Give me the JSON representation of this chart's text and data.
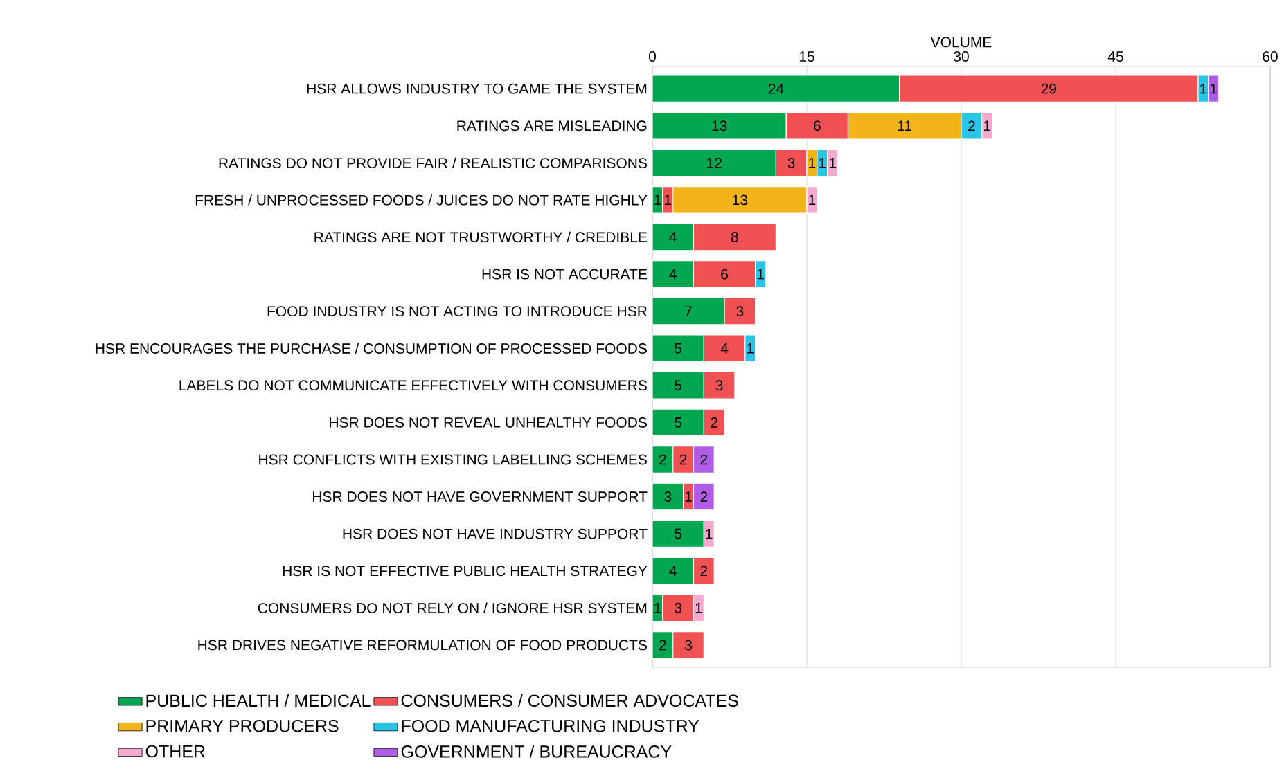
{
  "chart_data": {
    "type": "bar",
    "orientation": "horizontal",
    "stacked": true,
    "xlabel": "VOLUME",
    "xlim": [
      0,
      60
    ],
    "xticks": [
      0,
      15,
      30,
      45,
      60
    ],
    "grid": "x",
    "legend": "bottom",
    "data_labels": true,
    "categories": [
      "HSR ALLOWS INDUSTRY TO GAME THE SYSTEM",
      "RATINGS ARE MISLEADING",
      "RATINGS DO NOT PROVIDE FAIR / REALISTIC COMPARISONS",
      "FRESH / UNPROCESSED FOODS / JUICES DO NOT RATE HIGHLY",
      "RATINGS ARE NOT TRUSTWORTHY / CREDIBLE",
      "HSR IS NOT ACCURATE",
      "FOOD INDUSTRY IS NOT ACTING TO INTRODUCE HSR",
      "HSR ENCOURAGES THE PURCHASE / CONSUMPTION OF PROCESSED FOODS",
      "LABELS DO NOT COMMUNICATE EFFECTIVELY WITH CONSUMERS",
      "HSR DOES NOT REVEAL UNHEALTHY FOODS",
      "HSR CONFLICTS WITH EXISTING LABELLING SCHEMES",
      "HSR DOES NOT HAVE GOVERNMENT SUPPORT",
      "HSR DOES NOT HAVE INDUSTRY SUPPORT",
      "HSR IS NOT EFFECTIVE PUBLIC HEALTH STRATEGY",
      "CONSUMERS DO NOT RELY ON / IGNORE HSR SYSTEM",
      "HSR DRIVES NEGATIVE REFORMULATION OF FOOD PRODUCTS"
    ],
    "series": [
      {
        "name": "PUBLIC HEALTH / MEDICAL",
        "color": "#00a650",
        "values": [
          24,
          13,
          12,
          1,
          4,
          4,
          7,
          5,
          5,
          5,
          2,
          3,
          5,
          4,
          1,
          2
        ]
      },
      {
        "name": "CONSUMERS / CONSUMER ADVOCATES",
        "color": "#f15152",
        "values": [
          29,
          6,
          3,
          1,
          8,
          6,
          3,
          4,
          3,
          2,
          2,
          1,
          null,
          2,
          3,
          3
        ]
      },
      {
        "name": "PRIMARY PRODUCERS",
        "color": "#f2b418",
        "values": [
          null,
          11,
          1,
          13,
          null,
          null,
          null,
          null,
          null,
          null,
          null,
          null,
          null,
          null,
          null,
          null
        ]
      },
      {
        "name": "FOOD MANUFACTURING INDUSTRY",
        "color": "#29c5e6",
        "values": [
          1,
          2,
          1,
          null,
          null,
          1,
          null,
          1,
          null,
          null,
          null,
          null,
          null,
          null,
          null,
          null
        ]
      },
      {
        "name": "OTHER",
        "color": "#f5a9cf",
        "values": [
          null,
          1,
          1,
          1,
          null,
          null,
          null,
          null,
          null,
          null,
          null,
          null,
          1,
          null,
          1,
          null
        ]
      },
      {
        "name": "GOVERNMENT / BUREAUCRACY",
        "color": "#b05ce6",
        "values": [
          1,
          null,
          null,
          null,
          null,
          null,
          null,
          null,
          null,
          null,
          2,
          2,
          null,
          null,
          null,
          null
        ]
      }
    ]
  }
}
